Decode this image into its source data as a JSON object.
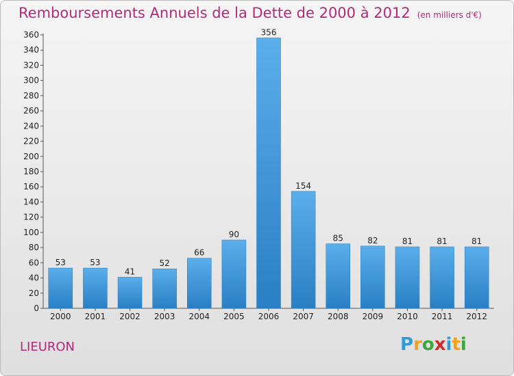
{
  "title": "Remboursements Annuels de la Dette de 2000 à 2012",
  "unit": "(en milliers d'€)",
  "commune": "LIEURON",
  "logo": {
    "letters": [
      "P",
      "r",
      "o",
      "x",
      "i",
      "t",
      "i"
    ],
    "colors": [
      "#2f9bd6",
      "#f0a020",
      "#3aa83a",
      "#d02a2a",
      "#2f9bd6",
      "#f0a020",
      "#3aa83a"
    ]
  },
  "colors": {
    "bar": "#3d9ee4",
    "title": "#b02a7a"
  },
  "chart_data": {
    "type": "bar",
    "title": "Remboursements Annuels de la Dette de 2000 à 2012",
    "categories": [
      "2000",
      "2001",
      "2002",
      "2003",
      "2004",
      "2005",
      "2006",
      "2007",
      "2008",
      "2009",
      "2010",
      "2011",
      "2012"
    ],
    "values": [
      53,
      53,
      41,
      52,
      66,
      90,
      356,
      154,
      85,
      82,
      81,
      81,
      81
    ],
    "ylim": [
      0,
      360
    ],
    "yticks": [
      0,
      20,
      40,
      60,
      80,
      100,
      120,
      140,
      160,
      180,
      200,
      220,
      240,
      260,
      280,
      300,
      320,
      340,
      360
    ],
    "grid": false,
    "data_labels": true
  }
}
